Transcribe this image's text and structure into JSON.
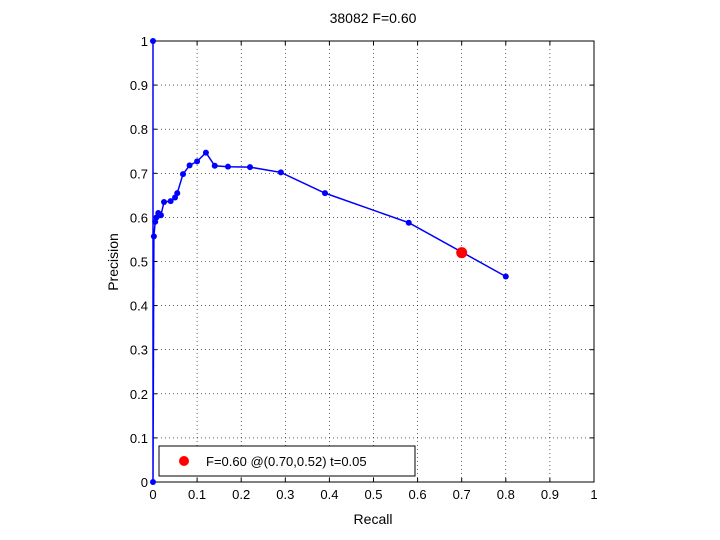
{
  "chart_data": {
    "type": "line",
    "title": "38082 F=0.60",
    "xlabel": "Recall",
    "ylabel": "Precision",
    "xlim": [
      0,
      1
    ],
    "ylim": [
      0,
      1
    ],
    "grid": true,
    "legend_position": "bottom-left",
    "xticks": [
      "0",
      "0.1",
      "0.2",
      "0.3",
      "0.4",
      "0.5",
      "0.6",
      "0.7",
      "0.8",
      "0.9",
      "1"
    ],
    "yticks": [
      "0",
      "0.1",
      "0.2",
      "0.3",
      "0.4",
      "0.5",
      "0.6",
      "0.7",
      "0.8",
      "0.9",
      "1"
    ],
    "series": [
      {
        "color": "#0000ff",
        "x": [
          0.0,
          0.0,
          0.002,
          0.005,
          0.008,
          0.012,
          0.018,
          0.025,
          0.04,
          0.05,
          0.055,
          0.068,
          0.083,
          0.1,
          0.12,
          0.14,
          0.17,
          0.22,
          0.29,
          0.39,
          0.58,
          0.8
        ],
        "y": [
          1.0,
          0.0,
          0.557,
          0.59,
          0.6,
          0.61,
          0.605,
          0.635,
          0.637,
          0.645,
          0.655,
          0.698,
          0.718,
          0.727,
          0.747,
          0.717,
          0.715,
          0.714,
          0.702,
          0.655,
          0.588,
          0.466
        ]
      }
    ],
    "highlight": {
      "x": 0.7,
      "y": 0.52,
      "color": "#ff0000",
      "label": "F=0.60 @(0.70,0.52) t=0.05"
    }
  }
}
